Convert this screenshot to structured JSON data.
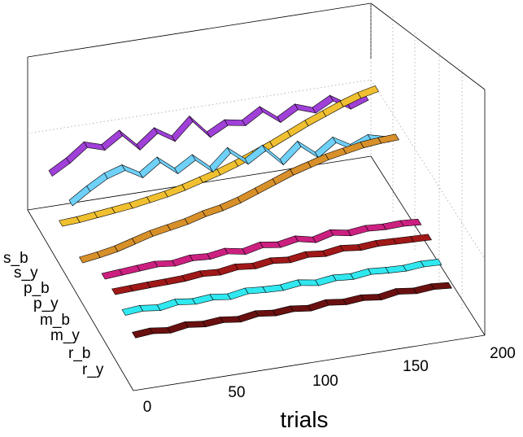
{
  "chart_data": {
    "type": "ribbon-3d",
    "xlabel": "trials",
    "x_ticks": [
      "0",
      "50",
      "100",
      "150",
      "200"
    ],
    "xlim": [
      0,
      200
    ],
    "series_labels": [
      "s_b",
      "s_y",
      "p_b",
      "p_y",
      "m_b",
      "m_y",
      "r_b",
      "r_y"
    ],
    "x_sampled": [
      0,
      10,
      20,
      30,
      40,
      50,
      60,
      70,
      80,
      90,
      100,
      110,
      120,
      130,
      140,
      150,
      160,
      170,
      180
    ],
    "series": [
      {
        "label": "s_b",
        "values": [
          0.32,
          0.45,
          0.62,
          0.55,
          0.7,
          0.48,
          0.66,
          0.52,
          0.74,
          0.5,
          0.62,
          0.58,
          0.72,
          0.55,
          0.68,
          0.6,
          0.72,
          0.58,
          0.66
        ]
      },
      {
        "label": "s_y",
        "values": [
          0.05,
          0.06,
          0.08,
          0.1,
          0.12,
          0.15,
          0.18,
          0.22,
          0.27,
          0.32,
          0.38,
          0.45,
          0.52,
          0.6,
          0.68,
          0.75,
          0.82,
          0.88,
          0.92
        ]
      },
      {
        "label": "p_b",
        "values": [
          0.4,
          0.55,
          0.68,
          0.75,
          0.62,
          0.78,
          0.6,
          0.74,
          0.55,
          0.76,
          0.58,
          0.72,
          0.5,
          0.7,
          0.52,
          0.68,
          0.55,
          0.64,
          0.58
        ]
      },
      {
        "label": "p_y",
        "values": [
          0.05,
          0.08,
          0.12,
          0.18,
          0.24,
          0.28,
          0.32,
          0.38,
          0.42,
          0.48,
          0.56,
          0.64,
          0.72,
          0.78,
          0.84,
          0.88,
          0.92,
          0.94,
          0.95
        ]
      },
      {
        "label": "m_b",
        "values": [
          0.1,
          0.14,
          0.18,
          0.22,
          0.16,
          0.24,
          0.2,
          0.28,
          0.18,
          0.3,
          0.22,
          0.32,
          0.2,
          0.34,
          0.24,
          0.3,
          0.26,
          0.28,
          0.24
        ]
      },
      {
        "label": "m_y",
        "values": [
          0.05,
          0.07,
          0.09,
          0.1,
          0.12,
          0.18,
          0.14,
          0.22,
          0.16,
          0.24,
          0.18,
          0.26,
          0.2,
          0.28,
          0.22,
          0.26,
          0.24,
          0.22,
          0.2
        ]
      },
      {
        "label": "r_b",
        "values": [
          0.3,
          0.34,
          0.28,
          0.36,
          0.3,
          0.34,
          0.28,
          0.36,
          0.32,
          0.3,
          0.36,
          0.28,
          0.34,
          0.3,
          0.36,
          0.32,
          0.3,
          0.34,
          0.32
        ]
      },
      {
        "label": "r_y",
        "values": [
          0.06,
          0.1,
          0.04,
          0.12,
          0.06,
          0.1,
          0.04,
          0.12,
          0.06,
          0.1,
          0.04,
          0.12,
          0.06,
          0.1,
          0.04,
          0.12,
          0.06,
          0.1,
          0.06
        ]
      }
    ],
    "series_colors": [
      "#a040d8",
      "#f0c030",
      "#6fd0f8",
      "#d8902a",
      "#cc2080",
      "#a01818",
      "#30e8f0",
      "#6a1010"
    ],
    "grid": true
  }
}
